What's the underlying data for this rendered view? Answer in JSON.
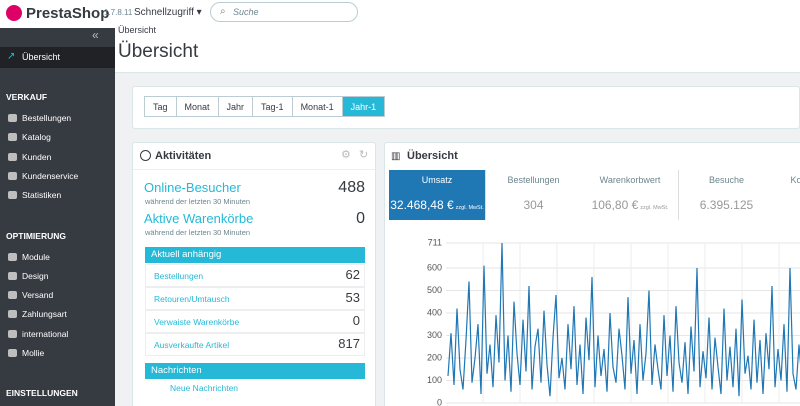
{
  "header": {
    "logo": "PrestaShop",
    "version": "1.7.8.11",
    "quick_access": "Schnellzugriff",
    "search_placeholder": "Suche"
  },
  "sidebar": {
    "dashboard": "Übersicht",
    "sections": [
      {
        "title": "VERKAUF",
        "items": [
          "Bestellungen",
          "Katalog",
          "Kunden",
          "Kundenservice",
          "Statistiken"
        ]
      },
      {
        "title": "OPTIMIERUNG",
        "items": [
          "Module",
          "Design",
          "Versand",
          "Zahlungsart",
          "international",
          "Mollie"
        ]
      },
      {
        "title": "EINSTELLUNGEN",
        "items": []
      }
    ]
  },
  "breadcrumb": "Übersicht",
  "title": "Übersicht",
  "periods": [
    {
      "label": "Tag",
      "active": false
    },
    {
      "label": "Monat",
      "active": false
    },
    {
      "label": "Jahr",
      "active": false
    },
    {
      "label": "Tag-1",
      "active": false
    },
    {
      "label": "Monat-1",
      "active": false
    },
    {
      "label": "Jahr-1",
      "active": true
    }
  ],
  "activity": {
    "title": "Aktivitäten",
    "stats": [
      {
        "label": "Online-Besucher",
        "sub": "während der letzten 30 Minuten",
        "value": 488
      },
      {
        "label": "Aktive Warenkörbe",
        "sub": "während der letzten 30 Minuten",
        "value": 0
      }
    ],
    "pending": {
      "title": "Aktuell anhängig",
      "rows": [
        {
          "label": "Bestellungen",
          "value": 62
        },
        {
          "label": "Retouren/Umtausch",
          "value": 53
        },
        {
          "label": "Verwaiste Warenkörbe",
          "value": 0
        },
        {
          "label": "Ausverkaufte Artikel",
          "value": 817
        }
      ]
    },
    "messages": {
      "title": "Nachrichten",
      "rows": [
        "Neue Nachrichten"
      ]
    }
  },
  "overview": {
    "title": "Übersicht",
    "kpis": [
      {
        "label": "Umsatz",
        "value": 32468.48,
        "value_label": "32.468,48 €",
        "note": "zzgl. MwSt.",
        "active": true
      },
      {
        "label": "Bestellungen",
        "value": 304,
        "active": false
      },
      {
        "label": "Warenkorbwert",
        "value": 106.8,
        "value_label": "106,80 €",
        "note": "zzgl. MwSt.",
        "active": false
      },
      {
        "label": "Besuche",
        "value": 6395125,
        "value_label": "6.395.125",
        "active": false
      },
      {
        "label": "Konversionsrate",
        "active": false
      }
    ]
  },
  "chart_data": {
    "type": "line",
    "color": "#1f77b4",
    "grid": true,
    "values": [
      120,
      310,
      80,
      420,
      150,
      60,
      280,
      540,
      90,
      200,
      350,
      40,
      610,
      130,
      260,
      70,
      390,
      180,
      711,
      100,
      300,
      50,
      450,
      220,
      80,
      370,
      140,
      520,
      60,
      250,
      330,
      90,
      410,
      170,
      30,
      290,
      480,
      110,
      200,
      60,
      350,
      150,
      430,
      80,
      260,
      40,
      380,
      190,
      560,
      70,
      300,
      120,
      240,
      50,
      400,
      160,
      90,
      330,
      210,
      60,
      470,
      130,
      280,
      40,
      350,
      100,
      220,
      500,
      80,
      260,
      150,
      60,
      390,
      120,
      300,
      50,
      430,
      180,
      90,
      270,
      40,
      340,
      140,
      600,
      70,
      230,
      110,
      380,
      60,
      290,
      160,
      40,
      420,
      100,
      250,
      70,
      330,
      30,
      460,
      130,
      210,
      60,
      370,
      90,
      280,
      40,
      310,
      150,
      520,
      70,
      240,
      100,
      350,
      50,
      600,
      130,
      60,
      260,
      90,
      410
    ],
    "ylim": [
      0,
      711
    ],
    "yticks": [
      0,
      100,
      200,
      300,
      400,
      500,
      600,
      711
    ]
  }
}
